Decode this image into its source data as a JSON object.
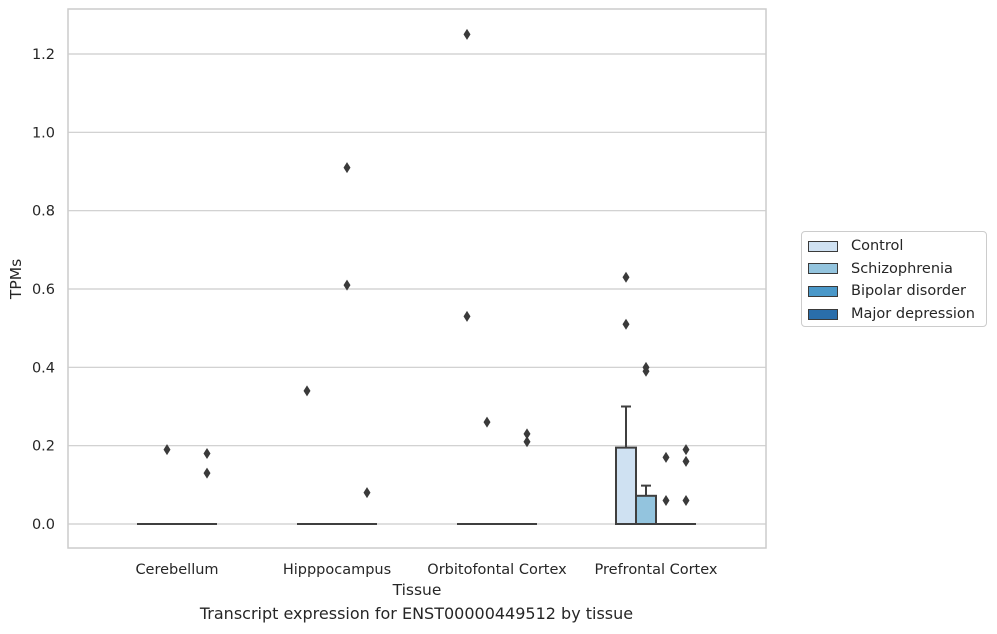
{
  "chart_data": {
    "type": "boxplot",
    "title": "Transcript expression for ENST00000449512 by tissue",
    "xlabel": "Tissue",
    "ylabel": "TPMs",
    "ylim": [
      -0.06,
      1.32
    ],
    "yticks": [
      0.0,
      0.2,
      0.4,
      0.6,
      0.8,
      1.0,
      1.2
    ],
    "ytick_labels": [
      "0.0",
      "0.2",
      "0.4",
      "0.6",
      "0.8",
      "1.0",
      "1.2"
    ],
    "grid": "horizontal",
    "legend_position": "right",
    "categories": [
      "Cerebellum",
      "Hipppocampus",
      "Orbitofontal Cortex",
      "Prefrontal Cortex"
    ],
    "series": [
      {
        "name": "Control",
        "color": "#cfe1f2",
        "boxes": [
          {
            "q1": 0.0,
            "median": 0.0,
            "q3": 0.0,
            "whisker_low": 0.0,
            "whisker_high": 0.0,
            "outliers": []
          },
          {
            "q1": 0.0,
            "median": 0.0,
            "q3": 0.0,
            "whisker_low": 0.0,
            "whisker_high": 0.0,
            "outliers": [
              0.34
            ]
          },
          {
            "q1": 0.0,
            "median": 0.0,
            "q3": 0.0,
            "whisker_low": 0.0,
            "whisker_high": 0.0,
            "outliers": [
              1.25,
              0.53
            ]
          },
          {
            "q1": 0.0,
            "median": 0.0,
            "q3": 0.195,
            "whisker_low": 0.0,
            "whisker_high": 0.3,
            "outliers": [
              0.63,
              0.51
            ]
          }
        ]
      },
      {
        "name": "Schizophrenia",
        "color": "#93c4de",
        "boxes": [
          {
            "q1": 0.0,
            "median": 0.0,
            "q3": 0.0,
            "whisker_low": 0.0,
            "whisker_high": 0.0,
            "outliers": [
              0.19
            ]
          },
          {
            "q1": 0.0,
            "median": 0.0,
            "q3": 0.0,
            "whisker_low": 0.0,
            "whisker_high": 0.0,
            "outliers": []
          },
          {
            "q1": 0.0,
            "median": 0.0,
            "q3": 0.0,
            "whisker_low": 0.0,
            "whisker_high": 0.0,
            "outliers": [
              0.26
            ]
          },
          {
            "q1": 0.0,
            "median": 0.0,
            "q3": 0.072,
            "whisker_low": 0.0,
            "whisker_high": 0.098,
            "outliers": [
              0.4,
              0.39
            ]
          }
        ]
      },
      {
        "name": "Bipolar disorder",
        "color": "#4a98c9",
        "boxes": [
          {
            "q1": 0.0,
            "median": 0.0,
            "q3": 0.0,
            "whisker_low": 0.0,
            "whisker_high": 0.0,
            "outliers": []
          },
          {
            "q1": 0.0,
            "median": 0.0,
            "q3": 0.0,
            "whisker_low": 0.0,
            "whisker_high": 0.0,
            "outliers": [
              0.91,
              0.61
            ]
          },
          {
            "q1": 0.0,
            "median": 0.0,
            "q3": 0.0,
            "whisker_low": 0.0,
            "whisker_high": 0.0,
            "outliers": []
          },
          {
            "q1": 0.0,
            "median": 0.0,
            "q3": 0.0,
            "whisker_low": 0.0,
            "whisker_high": 0.0,
            "outliers": [
              0.17,
              0.06
            ]
          }
        ]
      },
      {
        "name": "Major depression",
        "color": "#2a6eab",
        "boxes": [
          {
            "q1": 0.0,
            "median": 0.0,
            "q3": 0.0,
            "whisker_low": 0.0,
            "whisker_high": 0.0,
            "outliers": [
              0.18,
              0.13
            ]
          },
          {
            "q1": 0.0,
            "median": 0.0,
            "q3": 0.0,
            "whisker_low": 0.0,
            "whisker_high": 0.0,
            "outliers": [
              0.08
            ]
          },
          {
            "q1": 0.0,
            "median": 0.0,
            "q3": 0.0,
            "whisker_low": 0.0,
            "whisker_high": 0.0,
            "outliers": [
              0.23,
              0.21
            ]
          },
          {
            "q1": 0.0,
            "median": 0.0,
            "q3": 0.0,
            "whisker_low": 0.0,
            "whisker_high": 0.0,
            "outliers": [
              0.19,
              0.16,
              0.06
            ]
          }
        ]
      }
    ]
  }
}
